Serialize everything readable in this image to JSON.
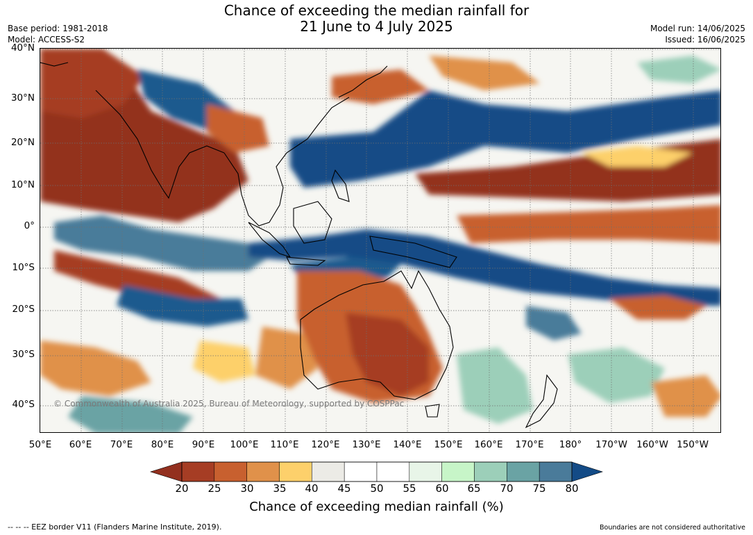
{
  "title": {
    "line1": "Chance of exceeding the median rainfall for",
    "line2": "21 June to 4 July 2025"
  },
  "meta_left": {
    "base_period": "Base period: 1981-2018",
    "model": "Model: ACCESS-S2"
  },
  "meta_right": {
    "model_run": "Model run: 14/06/2025",
    "issued": "Issued: 16/06/2025"
  },
  "copyright": "© Commonwealth of Australia 2025, Bureau of Meteorology, supported by COSPPac",
  "lat_labels": [
    "40°N",
    "30°N",
    "20°N",
    "10°N",
    "0°",
    "10°S",
    "20°S",
    "30°S",
    "40°S"
  ],
  "lon_labels": [
    "50°E",
    "60°E",
    "70°E",
    "80°E",
    "90°E",
    "100°E",
    "110°E",
    "120°E",
    "130°E",
    "140°E",
    "150°E",
    "160°E",
    "170°E",
    "180°",
    "170°W",
    "160°W",
    "150°W"
  ],
  "colorbar": {
    "ticks": [
      "20",
      "25",
      "30",
      "35",
      "40",
      "45",
      "50",
      "55",
      "60",
      "65",
      "70",
      "75",
      "80"
    ],
    "colors": [
      "#a63d24",
      "#c8602f",
      "#e0914a",
      "#fdd06b",
      "#ecebe6",
      "#ffffff",
      "#ffffff",
      "#e8f5e8",
      "#c7f5c8",
      "#9ccfb9",
      "#6aa3a4",
      "#4a7b9a"
    ],
    "low_color": "#93301f",
    "high_color": "#134b86",
    "label": "Chance of exceeding median rainfall (%)"
  },
  "footer": {
    "left": "--  --  -- EEZ border V11 (Flanders Marine Institute, 2019).",
    "right": "Boundaries are not considered authoritative"
  }
}
